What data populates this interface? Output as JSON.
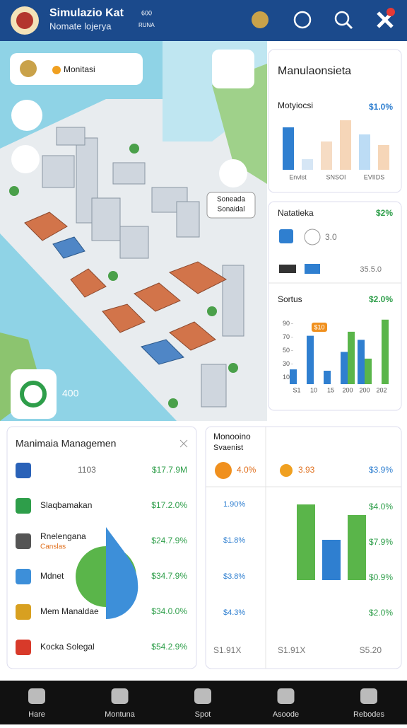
{
  "header": {
    "title": "Simulazio Kat",
    "subtitle": "Nomate lojerya",
    "stat_top": "600",
    "stat_bottom": "RUNA"
  },
  "map": {
    "badge": "Monitasi",
    "callout_line1": "Soneada",
    "callout_line2": "Sonaidal",
    "counter": "400"
  },
  "summary_card": {
    "title": "Manulaonsieta"
  },
  "stats_card": {
    "title": "Natatieka",
    "value": "$2%",
    "row1": "3.0",
    "row2": "35.5.0"
  },
  "management": {
    "title": "Manimaia Managemen",
    "rows": [
      {
        "label": "1103",
        "value": "$17.7.9M"
      },
      {
        "label": "Slaqbamakan",
        "value": "$17.2.0%"
      },
      {
        "label": "Rnelengana",
        "sublabel": "Canslas",
        "value": "$24.7.9%"
      },
      {
        "label": "Mdnet",
        "value": "$34.7.9%"
      },
      {
        "label": "Mem Manaldae",
        "value": "$34.0.0%"
      },
      {
        "label": "Kocka Solegal",
        "value": "$54.2.9%"
      }
    ]
  },
  "monitor": {
    "title_line1": "Monooino",
    "title_line2": "Svaenist",
    "chip1": "4.0%",
    "chip2": "3.93",
    "chip3": "$3.9%",
    "left_rows": [
      "1.90%",
      "$1.8%",
      "$3.8%",
      "$4.3%"
    ],
    "right_rows": [
      "$4.0%",
      "$7.9%",
      "$0.9%",
      "$2.0%"
    ],
    "footer_left": "S1.91X",
    "footer_right": "S5.20"
  },
  "nav": [
    "Hare",
    "Montuna",
    "Spot",
    "Asoode",
    "Rebodes"
  ],
  "chart_data": [
    {
      "type": "bar",
      "title": "Motyiocsi",
      "value_label": "$1.0%",
      "categories": [
        "Envlst",
        null,
        "SNSOI",
        null,
        "EVIIDS",
        null
      ],
      "values": [
        60,
        15,
        40,
        70,
        50,
        35
      ],
      "colors": [
        "#2f7fd0",
        "#d6e6f5",
        "#f6dcc4",
        "#f6d6b8",
        "#bcdcf5",
        "#f6d6b8"
      ]
    },
    {
      "type": "grouped-bar",
      "title": "Sortus",
      "value_label": "$2.0%",
      "annotation": "$10",
      "categories": [
        "S1",
        "10",
        "15",
        "200",
        "200",
        "202"
      ],
      "ylim": [
        0,
        100
      ],
      "yticks": [
        10,
        30,
        50,
        70,
        90
      ],
      "series": [
        {
          "color": "#2f7fd0",
          "values": [
            22,
            72,
            20,
            48,
            66,
            null
          ]
        },
        {
          "color": "#5ab54a",
          "values": [
            null,
            null,
            null,
            78,
            38,
            96
          ]
        }
      ]
    },
    {
      "type": "bar",
      "values": [
        107,
        57,
        92
      ],
      "colors": [
        "#5ab54a",
        "#2f7fd0",
        "#5ab54a"
      ]
    }
  ]
}
